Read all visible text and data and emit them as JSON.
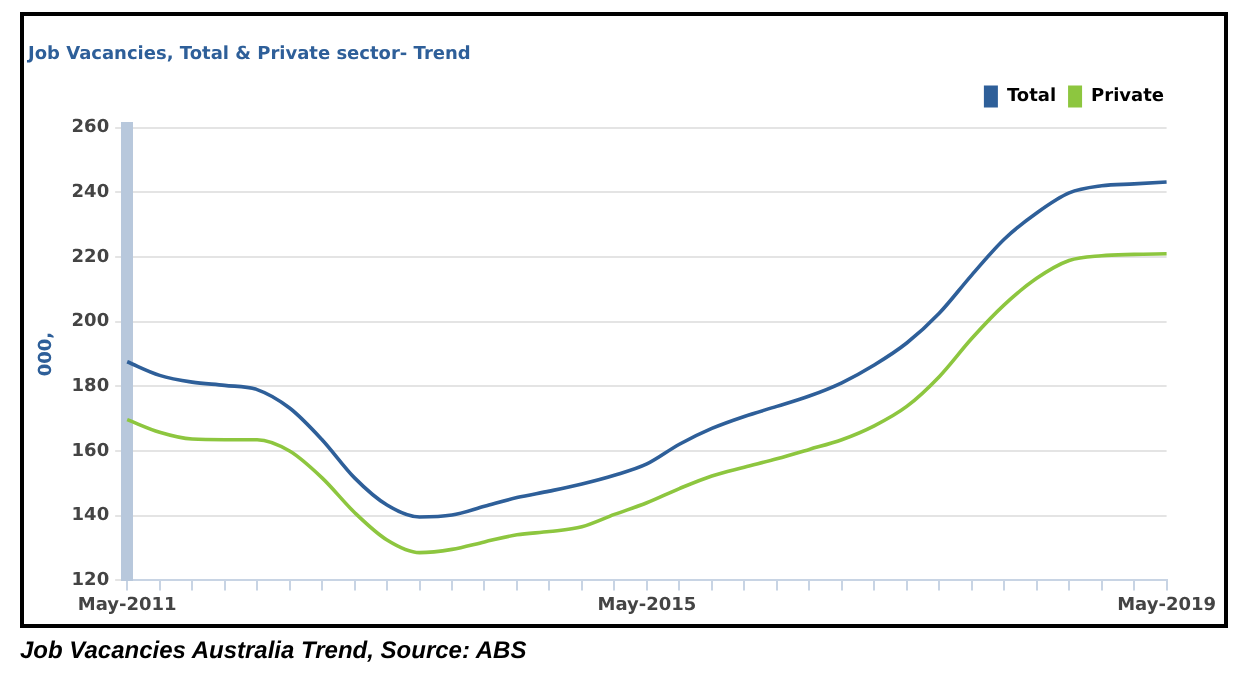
{
  "chart_data": {
    "type": "line",
    "title": "Job Vacancies, Total & Private sector- Trend",
    "ylabel": "000,",
    "categories": [
      "May-2011",
      null,
      null,
      null,
      null,
      null,
      null,
      null,
      null,
      null,
      null,
      null,
      null,
      null,
      null,
      null,
      "May-2015",
      null,
      null,
      null,
      null,
      null,
      null,
      null,
      null,
      null,
      null,
      null,
      null,
      null,
      null,
      null,
      "May-2019"
    ],
    "series": [
      {
        "name": "Total",
        "color": "#2e5f99",
        "values": [
          187.6,
          183.4,
          181.3,
          180.3,
          179,
          173.3,
          163.5,
          151.7,
          143.3,
          139.6,
          140.2,
          142.9,
          145.6,
          147.6,
          149.8,
          152.5,
          156,
          162.1,
          167,
          170.7,
          173.8,
          177,
          181.1,
          186.6,
          193.4,
          202.6,
          214.4,
          225.5,
          233.6,
          239.8,
          242,
          242.6,
          243.2
        ]
      },
      {
        "name": "Private",
        "color": "#8dc63f",
        "values": [
          169.7,
          165.8,
          163.7,
          163.5,
          163.5,
          160,
          151.7,
          141,
          132.5,
          128.6,
          129.6,
          131.9,
          134.1,
          135.1,
          136.6,
          140.4,
          144,
          148.4,
          152.3,
          155,
          157.6,
          160.5,
          163.5,
          167.8,
          173.8,
          183,
          194.8,
          205.2,
          213.4,
          218.9,
          220.4,
          220.8,
          221
        ]
      }
    ],
    "ylim": [
      120,
      260
    ],
    "yticks": [
      120,
      140,
      160,
      180,
      200,
      220,
      240,
      260
    ],
    "grid": "y",
    "legend": "top right",
    "marker": "none",
    "line_style": "solid",
    "annotations": [
      "Job Vacancies Australia Trend, Source: ABS"
    ]
  }
}
